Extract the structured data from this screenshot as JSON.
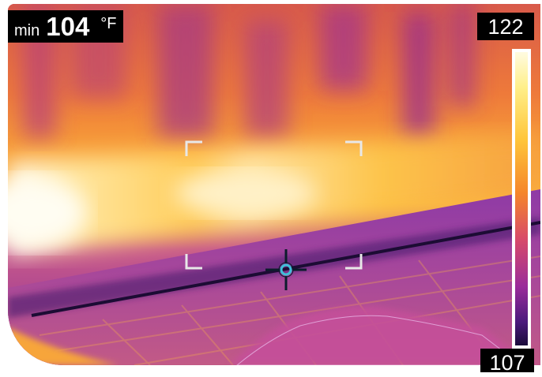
{
  "readout": {
    "label": "min",
    "value": "104",
    "unit": "°F"
  },
  "scale": {
    "max": "122",
    "min": "107"
  },
  "colors": {
    "hot": "#fffbe0",
    "warm": "#ffc53a",
    "mid": "#d74a6a",
    "cool": "#9a2c9a",
    "cold": "#1a0b3a",
    "crosshair": "#3fc0d8"
  },
  "icons": {
    "target": "crosshair-target-icon"
  }
}
